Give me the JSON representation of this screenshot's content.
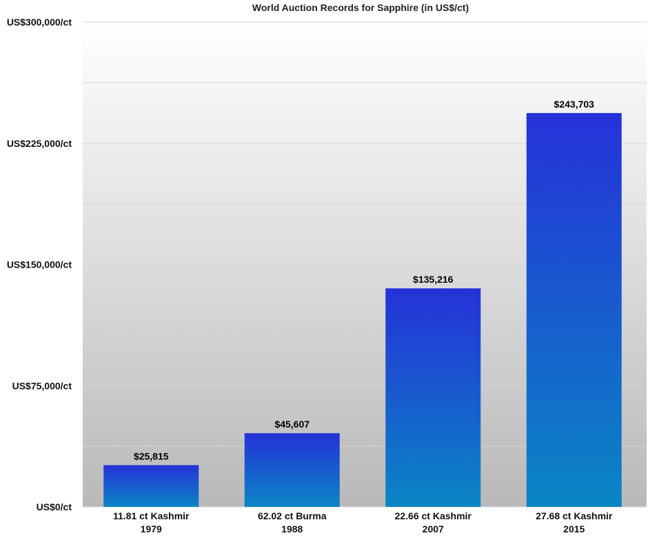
{
  "chart_data": {
    "type": "bar",
    "title": "World Auction Records for Sapphire (in US$/ct)",
    "xlabel": "",
    "ylabel": "",
    "ylim": [
      0,
      300000
    ],
    "grid": true,
    "y_ticks": [
      {
        "value": 0,
        "label": "US$0/ct"
      },
      {
        "value": 75000,
        "label": "US$75,000/ct"
      },
      {
        "value": 150000,
        "label": "US$150,000/ct"
      },
      {
        "value": 225000,
        "label": "US$225,000/ct"
      },
      {
        "value": 300000,
        "label": "US$300,000/ct"
      }
    ],
    "minor_gridlines": [
      37500,
      112500,
      187500,
      262500
    ],
    "categories": [
      {
        "line1": "11.81 ct Kashmir",
        "line2": "1979"
      },
      {
        "line1": "62.02 ct Burma",
        "line2": "1988"
      },
      {
        "line1": "22.66 ct Kashmir",
        "line2": "2007"
      },
      {
        "line1": "27.68 ct Kashmir",
        "line2": "2015"
      }
    ],
    "values": [
      25815,
      45607,
      135216,
      243703
    ],
    "value_labels": [
      "$25,815",
      "$45,607",
      "$135,216",
      "$243,703"
    ],
    "colors": {
      "bar_top": "#2532d8",
      "bar_bottom": "#0a86c4",
      "background_top": "#ffffff",
      "background_bottom": "#b9b9b9",
      "grid": "#d6d6d6"
    }
  }
}
